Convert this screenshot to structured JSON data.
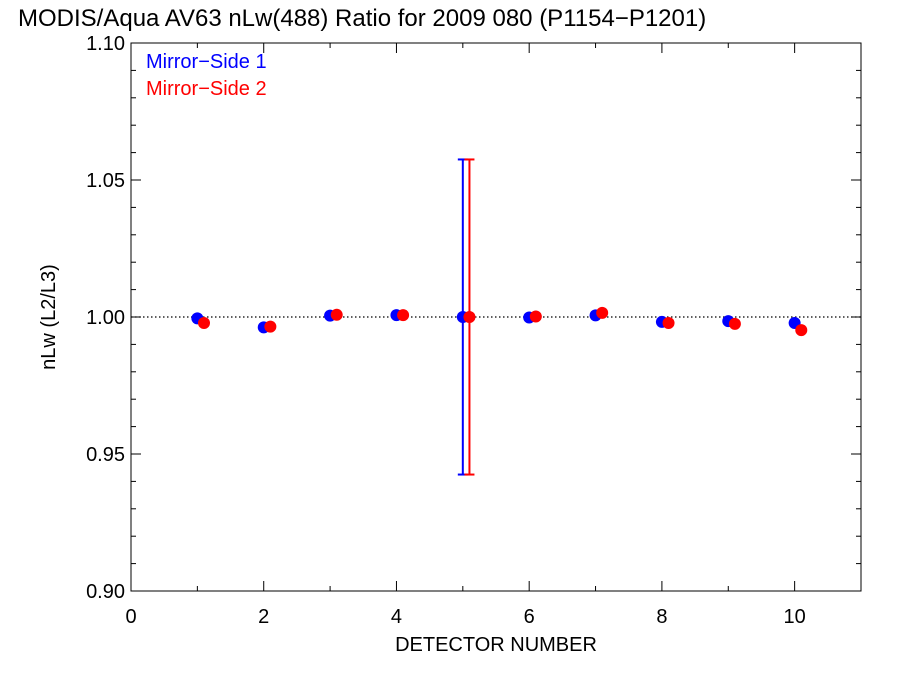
{
  "chart_data": {
    "type": "scatter",
    "title": "MODIS/Aqua AV63 nLw(488) Ratio for 2009 080 (P1154−P1201)",
    "xlabel": "DETECTOR NUMBER",
    "ylabel": "nLw (L2/L3)",
    "xlim": [
      0,
      11
    ],
    "ylim": [
      0.9,
      1.1
    ],
    "x_ticks": [
      0,
      2,
      4,
      6,
      8,
      10
    ],
    "x_tick_labels": [
      "0",
      "2",
      "4",
      "6",
      "8",
      "10"
    ],
    "y_ticks": [
      0.9,
      0.95,
      1.0,
      1.05,
      1.1
    ],
    "y_tick_labels": [
      "0.90",
      "0.95",
      "1.00",
      "1.05",
      "1.10"
    ],
    "reference_line": 1.0,
    "legend_position": "top-left",
    "series": [
      {
        "name": "Mirror−Side 1",
        "color": "#0000ff",
        "x": [
          1,
          2,
          3,
          4,
          5,
          6,
          7,
          8,
          9,
          10
        ],
        "y": [
          0.9995,
          0.9962,
          1.0005,
          1.0007,
          1.0,
          0.9998,
          1.0006,
          0.9982,
          0.9985,
          0.9978
        ],
        "error_bars": [
          {
            "x": 5,
            "low": 0.9425,
            "high": 1.0575
          }
        ]
      },
      {
        "name": "Mirror−Side 2",
        "color": "#ff0000",
        "x": [
          1.1,
          2.1,
          3.1,
          4.1,
          5.1,
          6.1,
          7.1,
          8.1,
          9.1,
          10.1
        ],
        "y": [
          0.9978,
          0.9965,
          1.0008,
          1.0007,
          1.0,
          1.0002,
          1.0015,
          0.9978,
          0.9975,
          0.9952
        ],
        "error_bars": [
          {
            "x": 5.1,
            "low": 0.9425,
            "high": 1.0575
          }
        ]
      }
    ]
  }
}
